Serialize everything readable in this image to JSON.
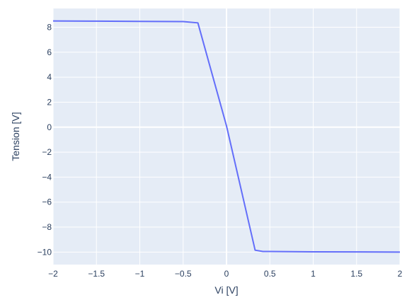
{
  "chart_data": {
    "type": "line",
    "title": "",
    "xlabel": "Vi [V]",
    "ylabel": "Tension [V]",
    "xlim": [
      -2,
      2
    ],
    "ylim": [
      -11,
      9.5
    ],
    "xticks": [
      -2,
      -1.5,
      -1,
      -0.5,
      0,
      0.5,
      1,
      1.5,
      2
    ],
    "xtick_labels": [
      "−2",
      "−1.5",
      "−1",
      "−0.5",
      "0",
      "0.5",
      "1",
      "1.5",
      "2"
    ],
    "yticks": [
      -10,
      -8,
      -6,
      -4,
      -2,
      0,
      2,
      4,
      6,
      8
    ],
    "ytick_labels": [
      "−10",
      "−8",
      "−6",
      "−4",
      "−2",
      "0",
      "2",
      "4",
      "6",
      "8"
    ],
    "grid": true,
    "series": [
      {
        "x": [
          -2,
          -1.5,
          -1,
          -0.5,
          -0.33,
          0,
          0.33,
          0.42,
          1,
          1.5,
          2
        ],
        "y": [
          8.5,
          8.49,
          8.47,
          8.45,
          8.35,
          0.1,
          -9.85,
          -9.95,
          -9.98,
          -9.99,
          -10.0
        ],
        "color": "#636efa"
      }
    ],
    "plot_bgcolor": "#e5ecf6",
    "grid_color": "#ffffff",
    "text_color": "#2a3f5f"
  }
}
